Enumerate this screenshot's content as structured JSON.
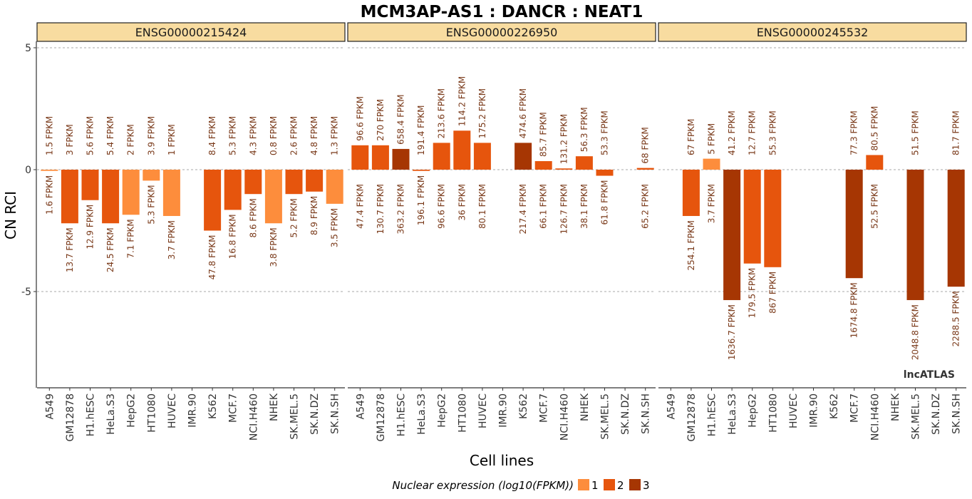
{
  "chart_data": {
    "type": "bar",
    "title": "MCM3AP-AS1 : DANCR : NEAT1",
    "xlabel": "Cell lines",
    "ylabel": "CN RCI",
    "ylim": [
      -9,
      5.2
    ],
    "yticks": [
      5,
      0,
      -5
    ],
    "grid": "dashed at y ticks",
    "categories": [
      "A549",
      "GM12878",
      "H1.hESC",
      "HeLa.S3",
      "HepG2",
      "HT1080",
      "HUVEC",
      "IMR.90",
      "K562",
      "MCF.7",
      "NCI.H460",
      "NHEK",
      "SK.MEL.5",
      "SK.N.DZ",
      "SK.N.SH"
    ],
    "panels": [
      {
        "name": "ENSG00000215424",
        "values": [
          -0.05,
          -2.2,
          -1.25,
          -2.2,
          -1.85,
          -0.45,
          -1.9,
          null,
          -2.5,
          -1.65,
          -1.0,
          -2.2,
          -1.0,
          -0.9,
          -1.4
        ],
        "level": [
          1,
          2,
          2,
          2,
          1,
          1,
          1,
          null,
          2,
          2,
          2,
          1,
          2,
          2,
          1
        ],
        "fpkm_top": [
          "1.5 FPKM",
          "3 FPKM",
          "5.6 FPKM",
          "5.4 FPKM",
          "2 FPKM",
          "3.9 FPKM",
          "1 FPKM",
          "",
          "8.4 FPKM",
          "5.3 FPKM",
          "4.3 FPKM",
          "0.8 FPKM",
          "2.6 FPKM",
          "4.8 FPKM",
          "1.3 FPKM"
        ],
        "fpkm_bottom": [
          "1.6 FPKM",
          "13.7 FPKM",
          "12.9 FPKM",
          "24.5 FPKM",
          "7.1 FPKM",
          "5.3 FPKM",
          "3.7 FPKM",
          "",
          "47.8 FPKM",
          "16.8 FPKM",
          "8.6 FPKM",
          "3.8 FPKM",
          "5.2 FPKM",
          "8.9 FPKM",
          "3.5 FPKM"
        ]
      },
      {
        "name": "ENSG00000226950",
        "values": [
          1.0,
          1.0,
          0.85,
          -0.05,
          1.1,
          1.6,
          1.1,
          null,
          1.1,
          0.35,
          0.05,
          0.55,
          -0.25,
          null,
          0.07
        ],
        "level": [
          2,
          2,
          3,
          2,
          2,
          2,
          2,
          null,
          3,
          2,
          2,
          2,
          2,
          null,
          2
        ],
        "fpkm_top": [
          "96.6 FPKM",
          "270 FPKM",
          "658.4 FPKM",
          "191.4 FPKM",
          "213.6 FPKM",
          "114.2 FPKM",
          "175.2 FPKM",
          "",
          "474.6 FPKM",
          "85.7 FPKM",
          "131.2 FPKM",
          "56.3 FPKM",
          "53.3 FPKM",
          "",
          "68 FPKM"
        ],
        "fpkm_bottom": [
          "47.4 FPKM",
          "130.7 FPKM",
          "363.2 FPKM",
          "196.1 FPKM",
          "96.6 FPKM",
          "36 FPKM",
          "80.1 FPKM",
          "",
          "217.4 FPKM",
          "66.1 FPKM",
          "126.7 FPKM",
          "38.1 FPKM",
          "61.8 FPKM",
          "",
          "65.2 FPKM"
        ]
      },
      {
        "name": "ENSG00000245532",
        "values": [
          null,
          -1.9,
          0.45,
          -5.35,
          -3.85,
          -4.0,
          null,
          null,
          null,
          -4.45,
          0.6,
          null,
          -5.35,
          null,
          -4.8
        ],
        "level": [
          null,
          2,
          1,
          3,
          2,
          2,
          null,
          null,
          null,
          3,
          2,
          null,
          3,
          null,
          3
        ],
        "fpkm_top": [
          "",
          "67 FPKM",
          "5 FPKM",
          "41.2 FPKM",
          "12.7 FPKM",
          "55.3 FPKM",
          "",
          "",
          "",
          "77.3 FPKM",
          "80.5 FPKM",
          "",
          "51.5 FPKM",
          "",
          "81.7 FPKM"
        ],
        "fpkm_bottom": [
          "",
          "254.1 FPKM",
          "3.7 FPKM",
          "1636.7 FPKM",
          "179.5 FPKM",
          "867 FPKM",
          "",
          "",
          "",
          "1674.8 FPKM",
          "52.5 FPKM",
          "",
          "2048.8 FPKM",
          "",
          "2288.5 FPKM"
        ]
      }
    ],
    "legend": {
      "title": "Nuclear expression (log10(FPKM))",
      "items": [
        {
          "label": "1",
          "color": "#fd8d3c"
        },
        {
          "label": "2",
          "color": "#e6550d"
        },
        {
          "label": "3",
          "color": "#a63603"
        }
      ],
      "placement": "bottom"
    },
    "brand": "lncATLAS",
    "colors": {
      "strip_fill": "#f8dca0",
      "grid": "#8c8c8c",
      "label": "#7a3a1a"
    }
  }
}
